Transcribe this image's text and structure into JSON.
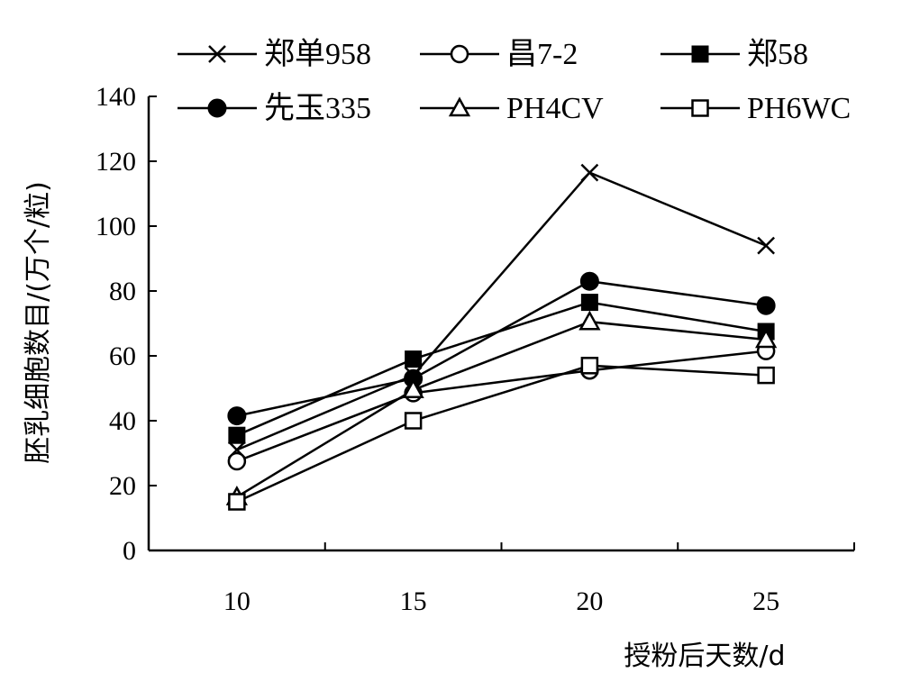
{
  "chart_data": {
    "type": "line",
    "x": [
      10,
      15,
      20,
      25
    ],
    "xlabel": "授粉后天数/d",
    "ylabel": "胚乳细胞数目/(万个/粒)",
    "ylim": [
      0,
      140
    ],
    "yticks": [
      0,
      20,
      40,
      60,
      80,
      100,
      120,
      140
    ],
    "xtick_labels": [
      "10",
      "15",
      "20",
      "25"
    ],
    "grid": false,
    "legend_position": "top",
    "series": [
      {
        "name": "郑单958",
        "marker": "cross",
        "values": [
          31,
          54,
          116.5,
          94
        ]
      },
      {
        "name": "昌7-2",
        "marker": "circle-open",
        "values": [
          27.5,
          48.5,
          55.5,
          61.5
        ]
      },
      {
        "name": "郑58",
        "marker": "square-filled",
        "values": [
          35.5,
          59,
          76.5,
          67.5
        ]
      },
      {
        "name": "先玉335",
        "marker": "circle-filled",
        "values": [
          41.5,
          53,
          83,
          75.5
        ]
      },
      {
        "name": "PH4CV",
        "marker": "triangle-open",
        "values": [
          16.5,
          49.5,
          70.5,
          65
        ]
      },
      {
        "name": "PH6WC",
        "marker": "square-open",
        "values": [
          15,
          40,
          57,
          54
        ]
      }
    ]
  }
}
